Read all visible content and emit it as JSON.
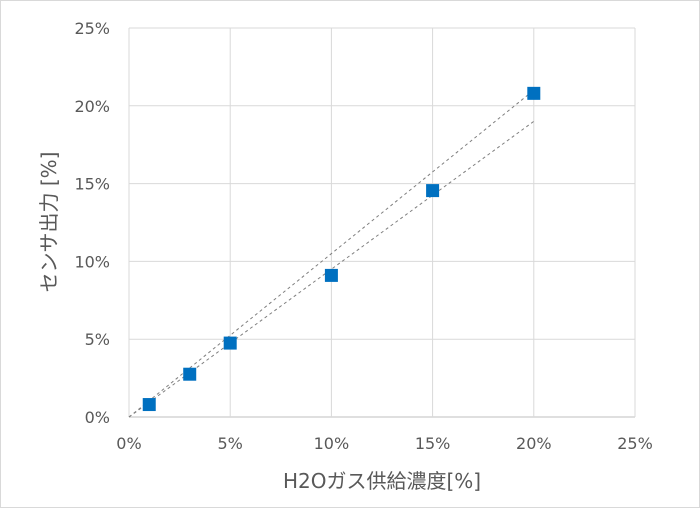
{
  "chart_data": {
    "type": "scatter",
    "xlabel": "H2Oガス供給濃度[%]",
    "ylabel": "センサ出力 [%]",
    "x_ticks": [
      "0%",
      "5%",
      "10%",
      "15%",
      "20%",
      "25%"
    ],
    "y_ticks": [
      "0%",
      "5%",
      "10%",
      "15%",
      "20%",
      "25%"
    ],
    "xlim": [
      0,
      25
    ],
    "ylim": [
      0,
      25
    ],
    "grid": true,
    "legend": "none",
    "series": [
      {
        "color": "#0070C0",
        "marker": "square",
        "points": [
          {
            "x": 1,
            "y": 0.8
          },
          {
            "x": 3,
            "y": 2.75
          },
          {
            "x": 5,
            "y": 4.75
          },
          {
            "x": 10,
            "y": 9.1
          },
          {
            "x": 15,
            "y": 14.55
          },
          {
            "x": 20,
            "y": 20.8
          }
        ]
      }
    ],
    "reference_lines": [
      {
        "style": "dashed",
        "color": "#7f7f7f",
        "from": {
          "x": 0,
          "y": 0
        },
        "to": {
          "x": 20,
          "y": 21
        }
      },
      {
        "style": "dashed",
        "color": "#7f7f7f",
        "from": {
          "x": 0,
          "y": 0
        },
        "to": {
          "x": 20,
          "y": 19
        }
      }
    ]
  }
}
